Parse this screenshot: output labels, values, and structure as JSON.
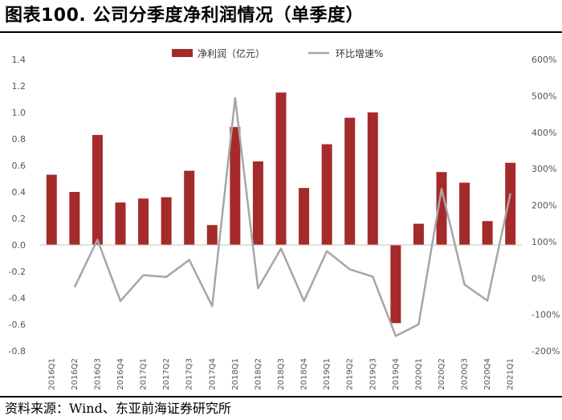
{
  "header": {
    "title": "图表100. 公司分季度净利润情况（单季度）"
  },
  "footer": {
    "source": "资料来源：Wind、东亚前海证券研究所"
  },
  "colors": {
    "bar": "#A52A2A",
    "line": "#A6A6A6",
    "axis": "#999999"
  },
  "chart_data": {
    "type": "bar+line",
    "categories": [
      "2016Q1",
      "2016Q2",
      "2016Q3",
      "2016Q4",
      "2017Q1",
      "2017Q2",
      "2017Q3",
      "2017Q4",
      "2018Q1",
      "2018Q2",
      "2018Q3",
      "2018Q4",
      "2019Q1",
      "2019Q2",
      "2019Q3",
      "2019Q4",
      "2020Q1",
      "2020Q2",
      "2020Q3",
      "2020Q4",
      "2021Q1"
    ],
    "series": [
      {
        "name": "净利润（亿元）",
        "type": "bar",
        "axis": "left",
        "values": [
          0.53,
          0.4,
          0.83,
          0.32,
          0.35,
          0.36,
          0.56,
          0.15,
          0.89,
          0.63,
          1.15,
          0.43,
          0.76,
          0.96,
          1.0,
          -0.59,
          0.16,
          0.55,
          0.47,
          0.18,
          0.62
        ]
      },
      {
        "name": "环比增速%",
        "type": "line",
        "axis": "right",
        "values": [
          null,
          -25,
          105,
          -63,
          8,
          3,
          50,
          -77,
          494,
          -28,
          81,
          -63,
          74,
          24,
          4,
          -159,
          -127,
          245,
          -18,
          -62,
          232
        ]
      }
    ],
    "y_left": {
      "min": -0.8,
      "max": 1.4,
      "ticks": [
        "1.4",
        "1.2",
        "1.0",
        "0.8",
        "0.6",
        "0.4",
        "0.2",
        "0.0",
        "-0.2",
        "-0.4",
        "-0.6",
        "-0.8"
      ]
    },
    "y_right": {
      "min": -200,
      "max": 600,
      "ticks": [
        "600%",
        "500%",
        "400%",
        "300%",
        "200%",
        "100%",
        "0%",
        "-100%",
        "-200%"
      ]
    },
    "legend": {
      "position": "top-center"
    },
    "grid": false
  }
}
